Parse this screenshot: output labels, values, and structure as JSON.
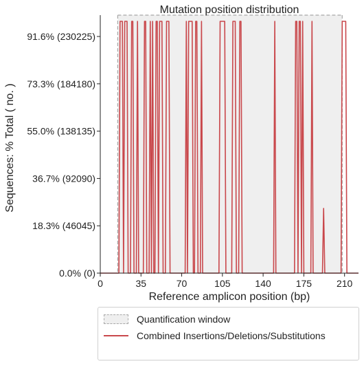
{
  "chart_data": {
    "type": "line",
    "title": "Mutation position distribution",
    "xlabel": "Reference amplicon position (bp)",
    "ylabel": "Sequences: % Total ( no. )",
    "xlim": [
      0,
      222
    ],
    "ylim": [
      0,
      251000
    ],
    "x_ticks": [
      0,
      35,
      70,
      105,
      140,
      175,
      210
    ],
    "y_ticks": [
      {
        "value": 0,
        "label": "0.0% (0)"
      },
      {
        "value": 46045,
        "label": "18.3% (46045)"
      },
      {
        "value": 92090,
        "label": "36.7% (92090)"
      },
      {
        "value": 138135,
        "label": "55.0% (138135)"
      },
      {
        "value": 184180,
        "label": "73.3% (184180)"
      },
      {
        "value": 230225,
        "label": "91.6% (230225)"
      }
    ],
    "quantification_window": [
      15,
      208
    ],
    "peak_value": 245000,
    "high_positions": [
      17,
      18,
      19,
      21,
      22,
      23,
      27,
      28,
      32,
      38,
      39,
      43,
      45,
      48,
      49,
      51,
      52,
      53,
      57,
      58,
      59,
      74,
      76,
      77,
      78,
      79,
      82,
      83,
      87,
      103,
      104,
      105,
      106,
      107,
      114,
      115,
      116,
      120,
      121,
      150,
      168,
      169,
      171,
      172,
      174,
      182,
      208,
      209,
      210,
      211
    ],
    "partial_points": [
      {
        "x": 192,
        "value": 63000
      }
    ],
    "series": [
      {
        "name": "Combined Insertions/Deletions/Substitutions",
        "color": "#c9474b"
      }
    ],
    "legend": {
      "position": "bottom",
      "entries": [
        "Quantification window",
        "Combined Insertions/Deletions/Substitutions"
      ]
    },
    "grid": false
  },
  "colors": {
    "line": "#c9474b",
    "window_fill": "#efefef",
    "window_border": "#a8a8a8",
    "axis": "#222222"
  }
}
